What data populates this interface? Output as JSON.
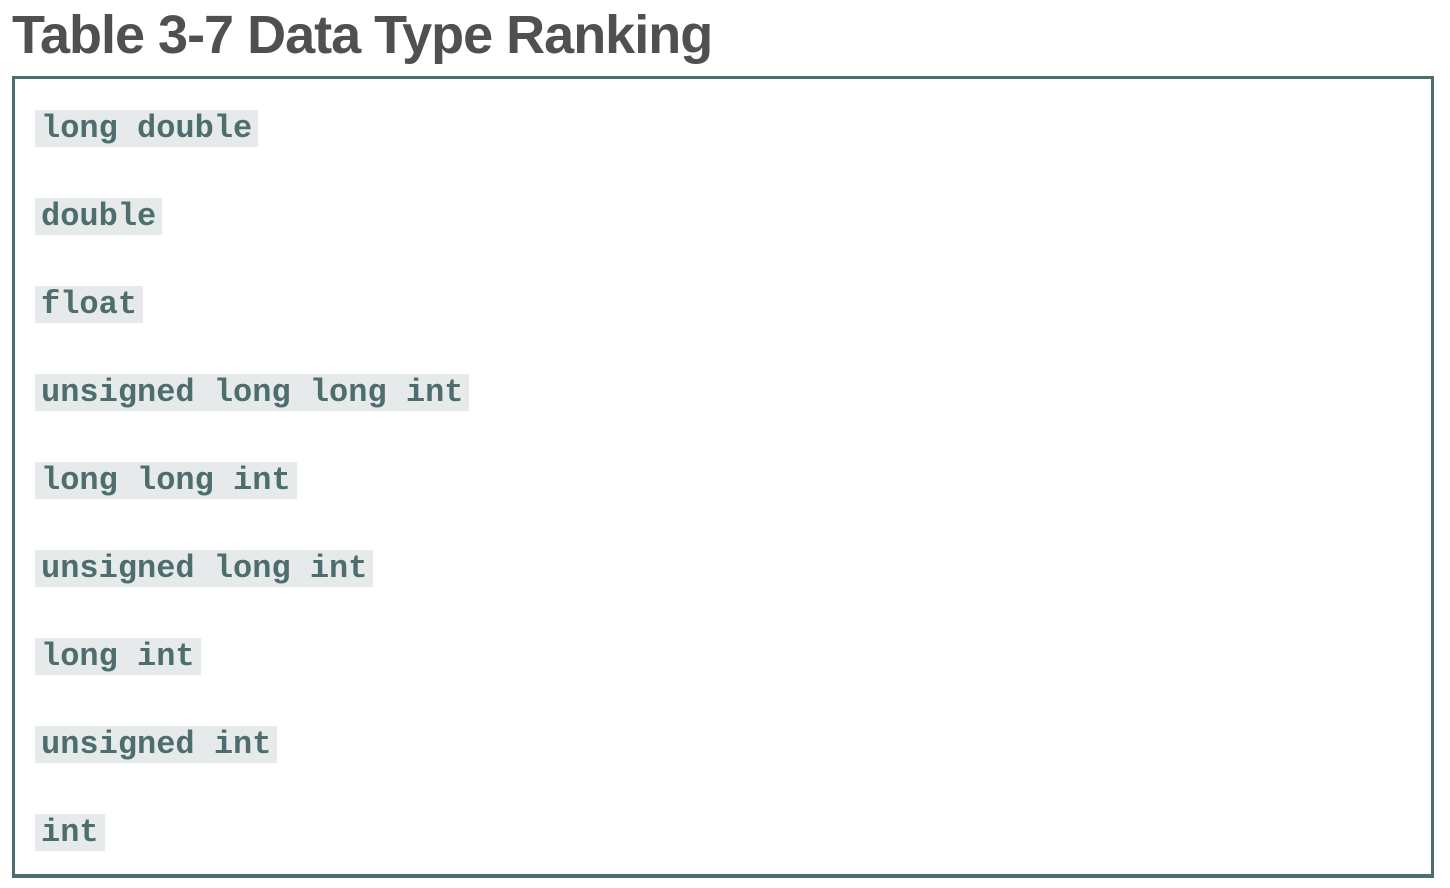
{
  "caption": "Table 3-7 Data Type Ranking",
  "types": [
    "long double",
    "double",
    "float",
    "unsigned long long int",
    "long long int",
    "unsigned long int",
    "long int",
    "unsigned int",
    "int"
  ],
  "colors": {
    "caption_text": "#505050",
    "border": "#4e6e6e",
    "code_text": "#4e6e6e",
    "code_background": "#e6eaea"
  }
}
